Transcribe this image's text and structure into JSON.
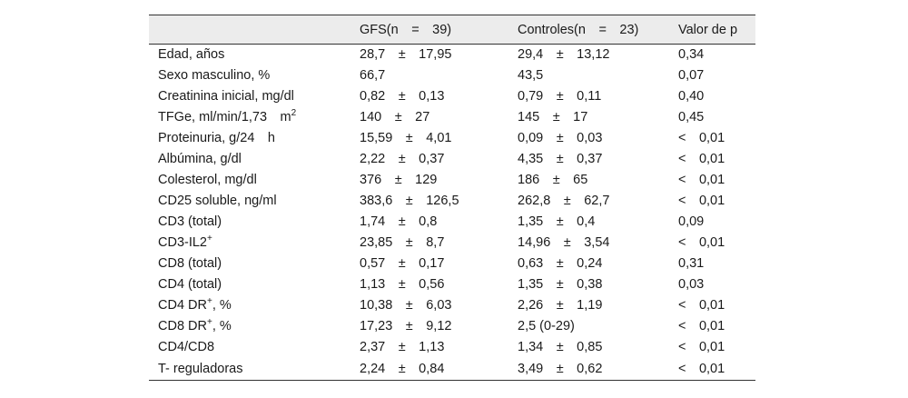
{
  "table": {
    "headers": [
      "",
      "GFS(n = 39)",
      "Controles(n = 23)",
      "Valor de p"
    ],
    "rows": [
      {
        "label": "Edad, años",
        "sup": "",
        "gfs": "28,7 ± 17,95",
        "controles": "29,4 ± 13,12",
        "p": "0,34"
      },
      {
        "label": "Sexo masculino, %",
        "sup": "",
        "gfs": "66,7",
        "controles": "43,5",
        "p": "0,07"
      },
      {
        "label": "Creatinina inicial, mg/dl",
        "sup": "",
        "gfs": "0,82 ± 0,13",
        "controles": "0,79 ± 0,11",
        "p": "0,40"
      },
      {
        "label": "TFGe, ml/min/1,73 m",
        "sup": "2",
        "gfs": "140 ± 27",
        "controles": "145 ± 17",
        "p": "0,45"
      },
      {
        "label": "Proteinuria, g/24 h",
        "sup": "",
        "gfs": "15,59 ± 4,01",
        "controles": "0,09 ± 0,03",
        "p": "< 0,01"
      },
      {
        "label": "Albúmina, g/dl",
        "sup": "",
        "gfs": "2,22 ± 0,37",
        "controles": "4,35 ± 0,37",
        "p": "< 0,01"
      },
      {
        "label": "Colesterol, mg/dl",
        "sup": "",
        "gfs": "376 ± 129",
        "controles": "186 ± 65",
        "p": "< 0,01"
      },
      {
        "label": "CD25 soluble, ng/ml",
        "sup": "",
        "gfs": "383,6 ± 126,5",
        "controles": "262,8 ± 62,7",
        "p": "< 0,01"
      },
      {
        "label": "CD3 (total)",
        "sup": "",
        "gfs": "1,74 ± 0,8",
        "controles": "1,35 ± 0,4",
        "p": "0,09"
      },
      {
        "label": "CD3-IL2",
        "sup": "+",
        "gfs": "23,85 ± 8,7",
        "controles": "14,96 ± 3,54",
        "p": "< 0,01"
      },
      {
        "label": "CD8 (total)",
        "sup": "",
        "gfs": "0,57 ± 0,17",
        "controles": "0,63 ± 0,24",
        "p": "0,31"
      },
      {
        "label": "CD4 (total)",
        "sup": "",
        "gfs": "1,13 ± 0,56",
        "controles": "1,35 ± 0,38",
        "p": "0,03"
      },
      {
        "label": "CD4 DR",
        "sup": "+",
        "suffix": ", %",
        "gfs": "10,38 ± 6,03",
        "controles": "2,26 ± 1,19",
        "p": "< 0,01"
      },
      {
        "label": "CD8 DR",
        "sup": "+",
        "suffix": ", %",
        "gfs": "17,23 ± 9,12",
        "controles": "2,5 (0-29)",
        "p": "< 0,01"
      },
      {
        "label": "CD4/CD8",
        "sup": "",
        "gfs": "2,37 ± 1,13",
        "controles": "1,34 ± 0,85",
        "p": "< 0,01"
      },
      {
        "label": "T- reguladoras",
        "sup": "",
        "gfs": "2,24 ± 0,84",
        "controles": "3,49 ± 0,62",
        "p": "< 0,01"
      }
    ]
  }
}
